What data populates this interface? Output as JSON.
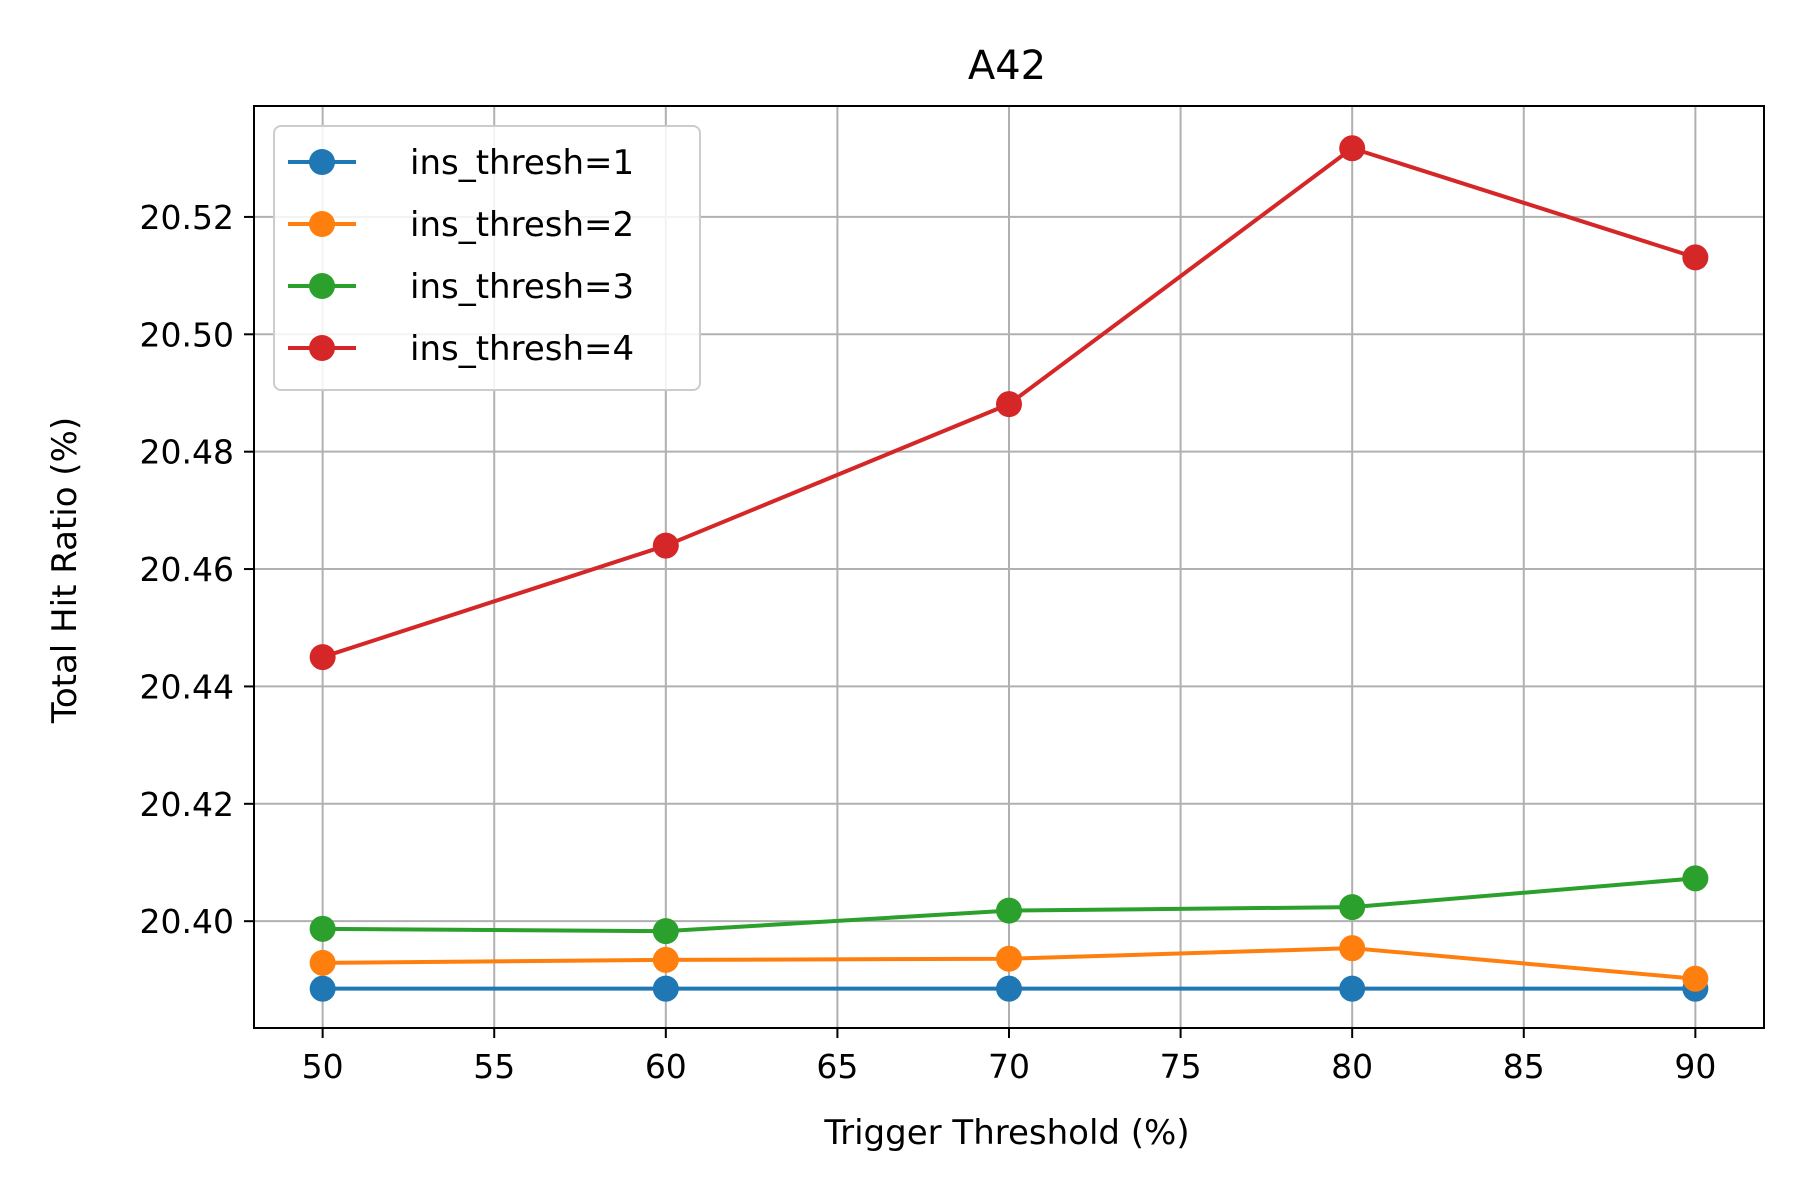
{
  "chart_data": {
    "type": "line",
    "title": "A42",
    "xlabel": "Trigger Threshold (%)",
    "ylabel": "Total Hit Ratio (%)",
    "x": [
      50,
      60,
      70,
      80,
      90
    ],
    "xlim": [
      48,
      92
    ],
    "ylim": [
      20.3818,
      20.5389
    ],
    "xticks": [
      50,
      55,
      60,
      65,
      70,
      75,
      80,
      85,
      90
    ],
    "yticks": [
      20.4,
      20.42,
      20.44,
      20.46,
      20.48,
      20.5,
      20.52
    ],
    "xtick_labels": [
      "50",
      "55",
      "60",
      "65",
      "70",
      "75",
      "80",
      "85",
      "90"
    ],
    "ytick_labels": [
      "20.40",
      "20.42",
      "20.44",
      "20.46",
      "20.48",
      "20.50",
      "20.52"
    ],
    "grid": true,
    "legend_position": "top-left",
    "series": [
      {
        "name": "ins_thresh=1",
        "color": "#1f77b4",
        "values": [
          20.3885,
          20.3885,
          20.3885,
          20.3885,
          20.3885
        ]
      },
      {
        "name": "ins_thresh=2",
        "color": "#ff7f0e",
        "values": [
          20.3929,
          20.3934,
          20.3936,
          20.3954,
          20.3902
        ]
      },
      {
        "name": "ins_thresh=3",
        "color": "#2ca02c",
        "values": [
          20.3987,
          20.3983,
          20.4018,
          20.4024,
          20.4073
        ]
      },
      {
        "name": "ins_thresh=4",
        "color": "#d62728",
        "values": [
          20.445,
          20.464,
          20.4881,
          20.5317,
          20.5131
        ]
      }
    ]
  }
}
